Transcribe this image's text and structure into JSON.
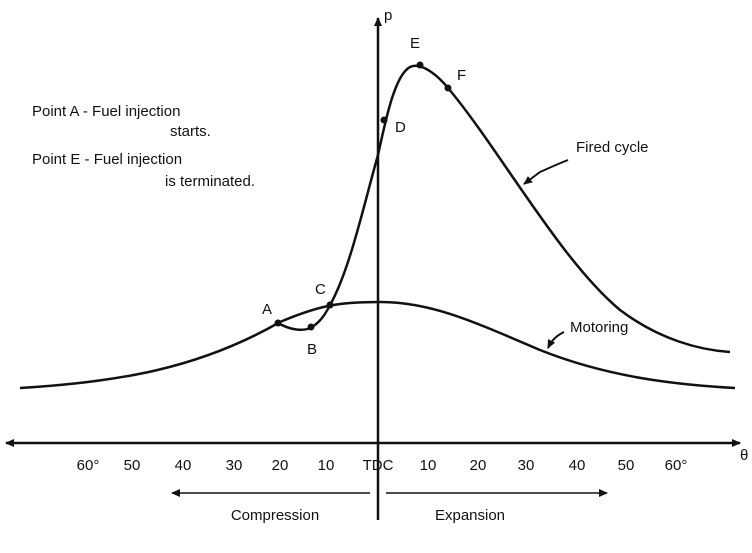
{
  "axes": {
    "y_label": "p",
    "x_label": "θ",
    "ticks": [
      "60°",
      "50",
      "40",
      "30",
      "20",
      "10",
      "TDC",
      "10",
      "20",
      "30",
      "40",
      "50",
      "60°"
    ]
  },
  "points": [
    "A",
    "B",
    "C",
    "D",
    "E",
    "F"
  ],
  "notes": [
    [
      "Point A - Fuel injection",
      "starts."
    ],
    [
      "Point E - Fuel injection",
      "is terminated."
    ]
  ],
  "curves": {
    "fired": "Fired cycle",
    "motoring": "Motoring"
  },
  "phases": {
    "compression": "Compression",
    "expansion": "Expansion"
  }
}
